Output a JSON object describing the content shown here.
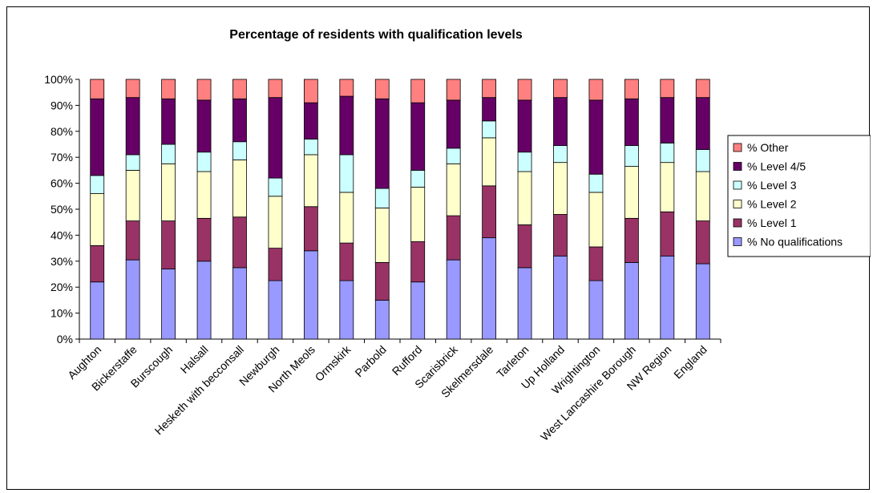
{
  "chart_data": {
    "type": "bar",
    "stacked": "percent",
    "title": "Percentage of residents with qualification levels",
    "xlabel": "",
    "ylabel": "",
    "ylim": [
      0,
      100
    ],
    "y_ticks": [
      "0%",
      "10%",
      "20%",
      "30%",
      "40%",
      "50%",
      "60%",
      "70%",
      "80%",
      "90%",
      "100%"
    ],
    "grid": false,
    "legend_position": "right",
    "categories": [
      "Aughton",
      "Bickerstaffe",
      "Burscough",
      "Halsall",
      "Hesketh with becconsall",
      "Newburgh",
      "North Meols",
      "Ormskirk",
      "Parbold",
      "Rufford",
      "Scarisbrick",
      "Skelmersdale",
      "Tarleton",
      "Up Holland",
      "Wrightington",
      "West Lancashire Borough",
      "NW Region",
      "England"
    ],
    "series": [
      {
        "name": "% No qualifications",
        "color": "#9999FF",
        "values": [
          22,
          30.5,
          27,
          30,
          27.5,
          22.5,
          34,
          22.5,
          15,
          22,
          30.5,
          39,
          27.5,
          32,
          22.5,
          29.5,
          32,
          29
        ]
      },
      {
        "name": "% Level 1",
        "color": "#993366",
        "values": [
          14,
          15,
          18.5,
          16.5,
          19.5,
          12.5,
          17,
          14.5,
          14.5,
          15.5,
          17,
          20,
          16.5,
          16,
          13,
          17,
          17,
          16.5
        ]
      },
      {
        "name": "% Level 2",
        "color": "#FFFFCC",
        "values": [
          20,
          19.5,
          22,
          18,
          22,
          20,
          20,
          19.5,
          21,
          21,
          20,
          18.5,
          20.5,
          20,
          21,
          20,
          19,
          19
        ]
      },
      {
        "name": "% Level 3",
        "color": "#CCFFFF",
        "values": [
          7,
          6,
          7.5,
          7.5,
          7,
          7,
          6,
          14.5,
          7.5,
          6.5,
          6,
          6.5,
          7.5,
          6.5,
          7,
          8,
          7.5,
          8.5
        ]
      },
      {
        "name": "% Level 4/5",
        "color": "#660066",
        "values": [
          29.5,
          22,
          17.5,
          20,
          16.5,
          31,
          14,
          22.5,
          34.5,
          26,
          18.5,
          9,
          20,
          18.5,
          28.5,
          18,
          17.5,
          20
        ]
      },
      {
        "name": "% Other",
        "color": "#FF8080",
        "values": [
          7.5,
          7,
          7.5,
          8,
          7.5,
          7,
          9,
          6.5,
          7.5,
          9,
          8,
          7,
          8,
          7,
          8,
          7.5,
          7,
          7
        ]
      }
    ]
  }
}
